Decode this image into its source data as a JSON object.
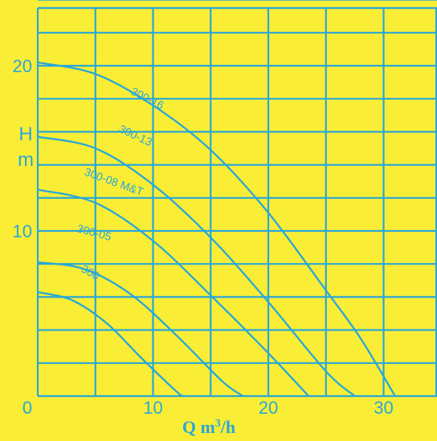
{
  "chart_data": {
    "type": "line",
    "title": "",
    "xlabel": {
      "main": "Q m",
      "sup": "3",
      "tail": "/h"
    },
    "ylabel": [
      "H",
      "m"
    ],
    "xlim": [
      0,
      35
    ],
    "ylim": [
      0,
      27
    ],
    "x_ticks": [
      "0",
      "10",
      "20",
      "30"
    ],
    "y_ticks": [
      "10",
      "20"
    ],
    "grid": true,
    "colors": {
      "background": "#f9ee35",
      "lines": "#2aa7d8"
    },
    "series": [
      {
        "name": "300-16",
        "x": [
          0,
          5,
          10,
          15,
          20,
          25,
          28,
          31
        ],
        "y": [
          20.2,
          19.5,
          17.6,
          14.9,
          11.1,
          6.4,
          3.5,
          0
        ]
      },
      {
        "name": "300-13",
        "x": [
          0,
          5,
          10,
          15,
          20,
          25,
          27.5
        ],
        "y": [
          15.7,
          15.0,
          12.8,
          9.6,
          5.7,
          1.5,
          0
        ]
      },
      {
        "name": "300-08 M&T",
        "x": [
          0,
          5,
          10,
          15,
          20,
          23.5
        ],
        "y": [
          12.5,
          11.7,
          9.4,
          6.1,
          2.6,
          0
        ]
      },
      {
        "name": "300-05",
        "x": [
          0,
          4,
          8,
          12,
          16,
          17.8
        ],
        "y": [
          8.1,
          7.7,
          6.2,
          3.7,
          0.9,
          0
        ]
      },
      {
        "name": "300",
        "x": [
          0,
          3,
          6,
          9,
          12,
          12.6
        ],
        "y": [
          6.3,
          5.8,
          4.4,
          2.3,
          0.3,
          0
        ]
      }
    ]
  }
}
